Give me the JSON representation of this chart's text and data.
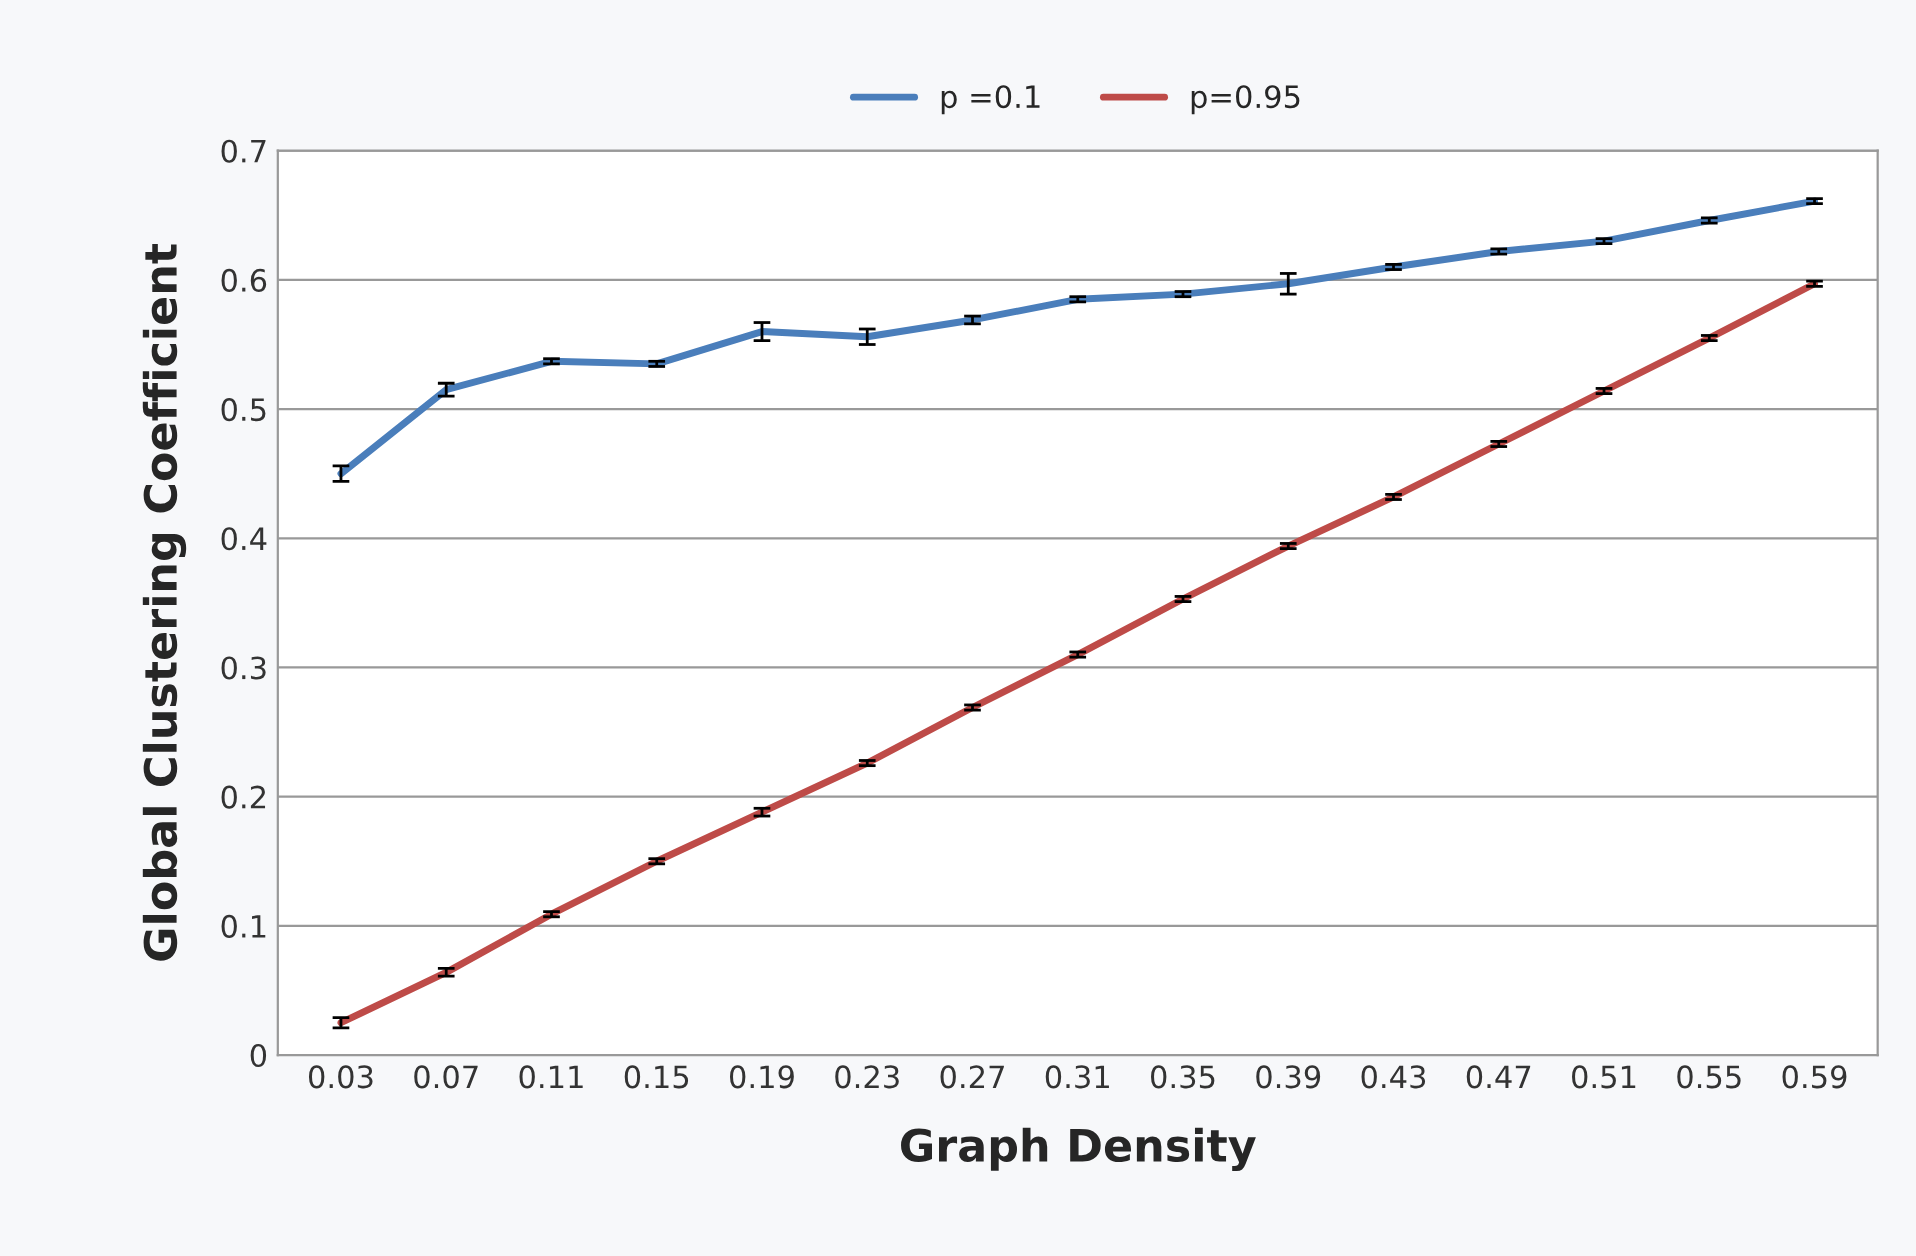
{
  "chart_data": {
    "type": "line",
    "xlabel": "Graph Density",
    "ylabel": "Global Clustering Coefficient",
    "categories": [
      "0.03",
      "0.07",
      "0.11",
      "0.15",
      "0.19",
      "0.23",
      "0.27",
      "0.31",
      "0.35",
      "0.39",
      "0.43",
      "0.47",
      "0.51",
      "0.55",
      "0.59"
    ],
    "series": [
      {
        "name": "p =0.1",
        "color": "#4a7ebb",
        "values": [
          0.45,
          0.515,
          0.537,
          0.535,
          0.56,
          0.556,
          0.569,
          0.585,
          0.589,
          0.597,
          0.61,
          0.622,
          0.63,
          0.646,
          0.661
        ],
        "errors": [
          0.006,
          0.005,
          0.002,
          0.002,
          0.007,
          0.006,
          0.003,
          0.002,
          0.002,
          0.008,
          0.002,
          0.002,
          0.002,
          0.002,
          0.002
        ]
      },
      {
        "name": "p=0.95",
        "color": "#be4b48",
        "values": [
          0.025,
          0.064,
          0.109,
          0.15,
          0.188,
          0.226,
          0.269,
          0.31,
          0.353,
          0.394,
          0.432,
          0.473,
          0.514,
          0.555,
          0.597
        ],
        "errors": [
          0.004,
          0.003,
          0.002,
          0.002,
          0.003,
          0.002,
          0.002,
          0.002,
          0.002,
          0.002,
          0.002,
          0.002,
          0.002,
          0.002,
          0.002
        ]
      }
    ],
    "ylim": [
      0,
      0.7
    ],
    "yticks": [
      0,
      0.1,
      0.2,
      0.3,
      0.4,
      0.5,
      0.6,
      0.7
    ],
    "grid": "y",
    "legend": "top",
    "marker": "none",
    "line_style": "solid"
  }
}
